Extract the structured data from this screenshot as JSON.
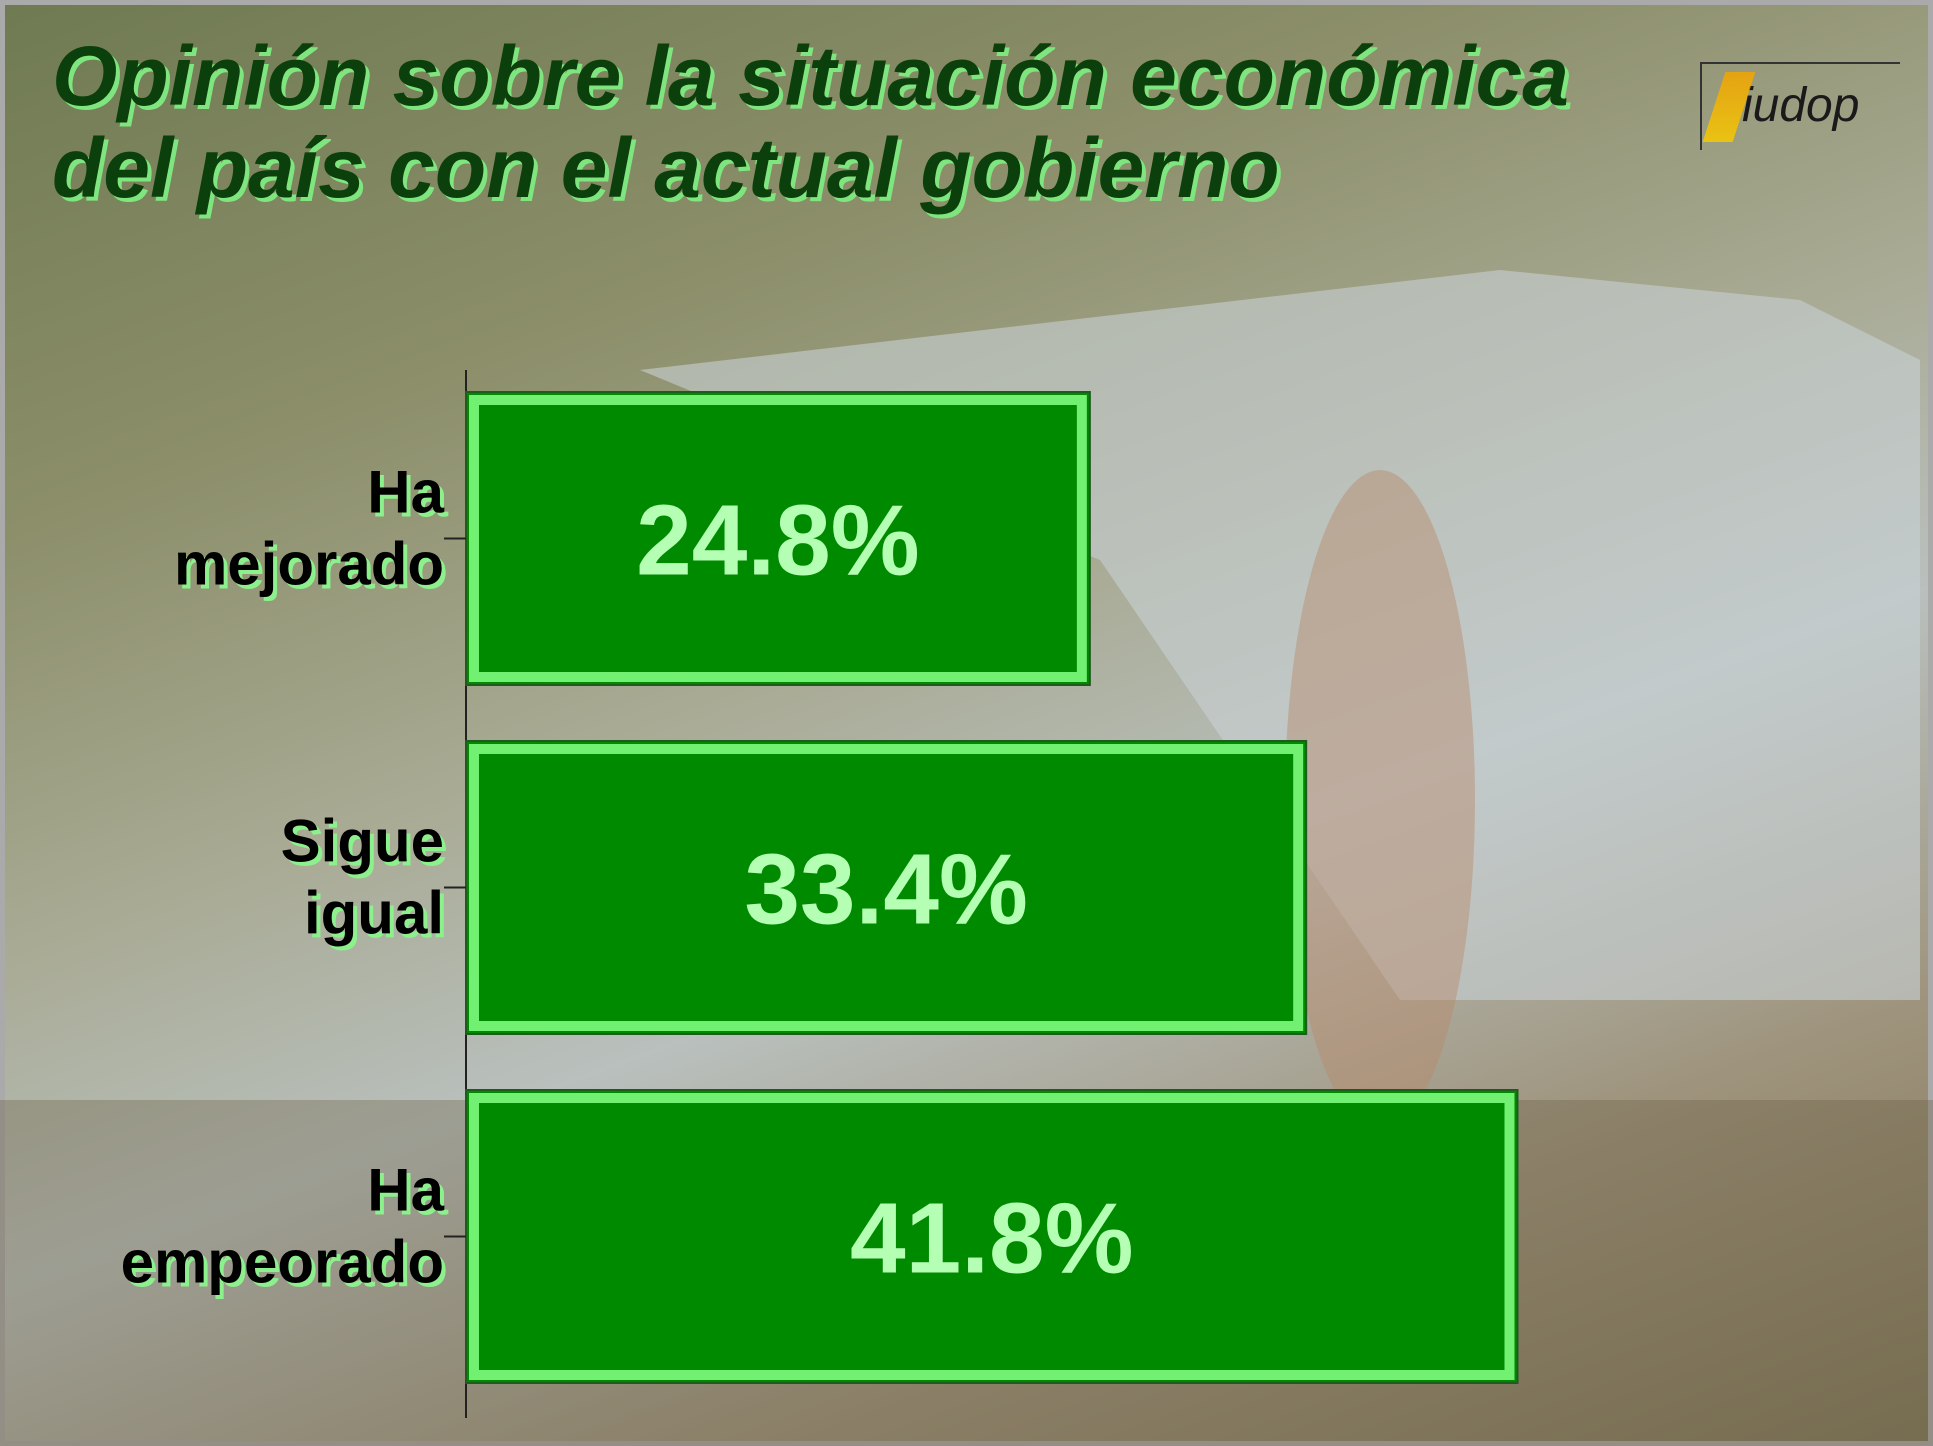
{
  "chart_data": {
    "type": "bar",
    "orientation": "horizontal",
    "title": "Opinión sobre la situación económica del país con el actual gobierno",
    "categories": [
      "Ha mejorado",
      "Sigue igual",
      "Ha empeorado"
    ],
    "values": [
      24.8,
      33.4,
      41.8
    ],
    "value_labels": [
      "24.8%",
      "33.4%",
      "41.8%"
    ],
    "color": "#008a00",
    "xlim": [
      0,
      58
    ]
  },
  "logo": "iudop"
}
